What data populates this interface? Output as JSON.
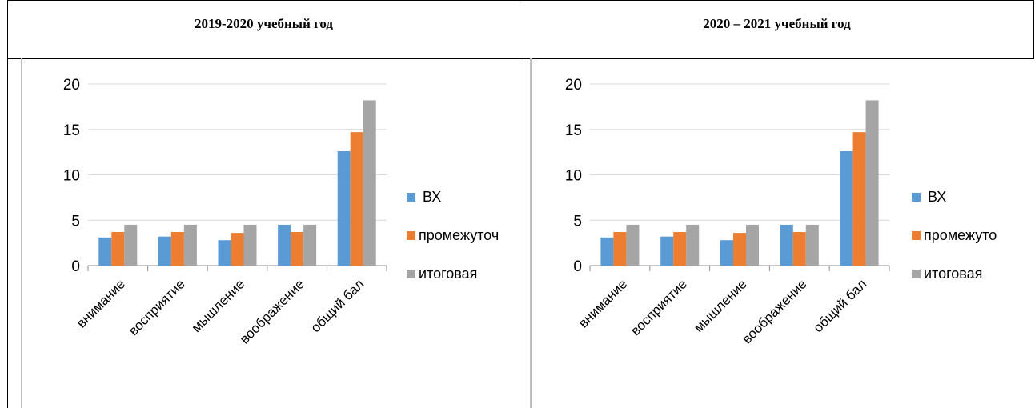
{
  "headers": {
    "left": "2019-2020 учебный год",
    "right": "2020 – 2021 учебный год"
  },
  "colors": {
    "series": [
      "#5b9bd5",
      "#ed7d31",
      "#a5a5a5"
    ],
    "grid": "#d9d9d9",
    "axis": "#8c8c8c"
  },
  "chart_data": [
    {
      "type": "bar",
      "title": "",
      "xlabel": "",
      "ylabel": "",
      "ylim": [
        0,
        20
      ],
      "yticks": [
        0,
        5,
        10,
        15,
        20
      ],
      "grid": true,
      "legend": "right",
      "categories": [
        "внимание",
        "восприятие",
        "мышление",
        "воображение",
        "общий  бал"
      ],
      "series": [
        {
          "name": "ВХ",
          "values": [
            3.1,
            3.2,
            2.8,
            4.5,
            12.6
          ]
        },
        {
          "name": "промежуточ",
          "values": [
            3.7,
            3.7,
            3.6,
            3.7,
            14.7
          ]
        },
        {
          "name": "итоговая",
          "values": [
            4.5,
            4.5,
            4.5,
            4.5,
            18.2
          ]
        }
      ]
    },
    {
      "type": "bar",
      "title": "",
      "xlabel": "",
      "ylabel": "",
      "ylim": [
        0,
        20
      ],
      "yticks": [
        0,
        5,
        10,
        15,
        20
      ],
      "grid": true,
      "legend": "right",
      "categories": [
        "внимание",
        "восприятие",
        "мышление",
        "воображение",
        "общий  бал"
      ],
      "series": [
        {
          "name": "ВХ",
          "values": [
            3.1,
            3.2,
            2.8,
            4.5,
            12.6
          ]
        },
        {
          "name": "промежуто",
          "values": [
            3.7,
            3.7,
            3.6,
            3.7,
            14.7
          ]
        },
        {
          "name": "итоговая",
          "values": [
            4.5,
            4.5,
            4.5,
            4.5,
            18.2
          ]
        }
      ]
    }
  ]
}
